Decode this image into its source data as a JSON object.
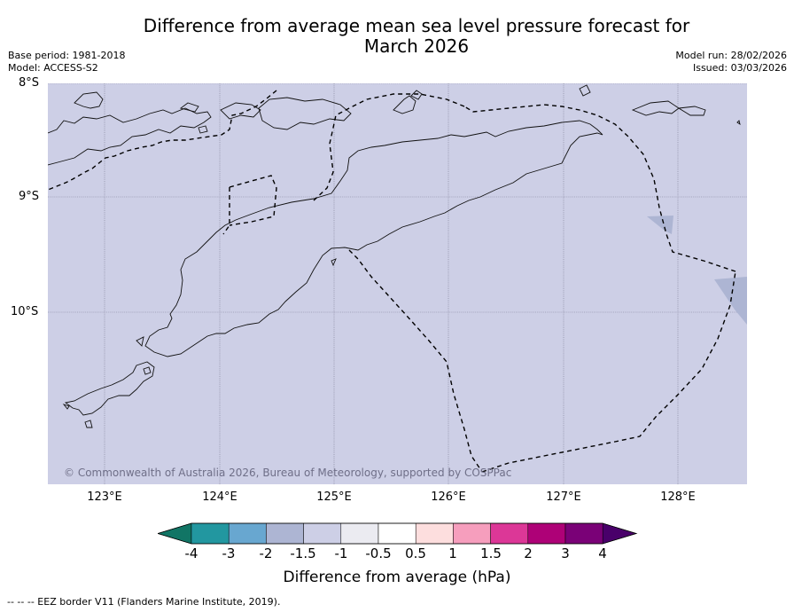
{
  "title_line1": "Difference from average mean sea level pressure forecast for",
  "title_line2": "March 2026",
  "base_period": "Base period: 1981-2018",
  "model": "Model: ACCESS-S2",
  "model_run": "Model run: 28/02/2026",
  "issued": "Issued: 03/03/2026",
  "copyright": "© Commonwealth of Australia 2026, Bureau of Meteorology, supported by COSPPac",
  "latitudes": [
    "8°S",
    "9°S",
    "10°S"
  ],
  "longitudes": [
    "123°E",
    "124°E",
    "125°E",
    "126°E",
    "127°E",
    "128°E"
  ],
  "colorbar": {
    "label": "Difference from average (hPa)",
    "ticks": [
      "-4",
      "-3",
      "-2",
      "-1.5",
      "-1",
      "-0.5",
      "0.5",
      "1",
      "1.5",
      "2",
      "3",
      "4"
    ],
    "colors": [
      "#117565",
      "#2297a0",
      "#68a7d0",
      "#adb5d3",
      "#cdcfe6",
      "#ebebf1",
      "#ffffff",
      "#fddede",
      "#f69ebd",
      "#dc3797",
      "#ae0177",
      "#7a0177",
      "#49006a"
    ]
  },
  "footnote": "-- -- -- EEZ border V11 (Flanders Marine Institute, 2019).",
  "map_background_color": "#cdcfe6"
}
